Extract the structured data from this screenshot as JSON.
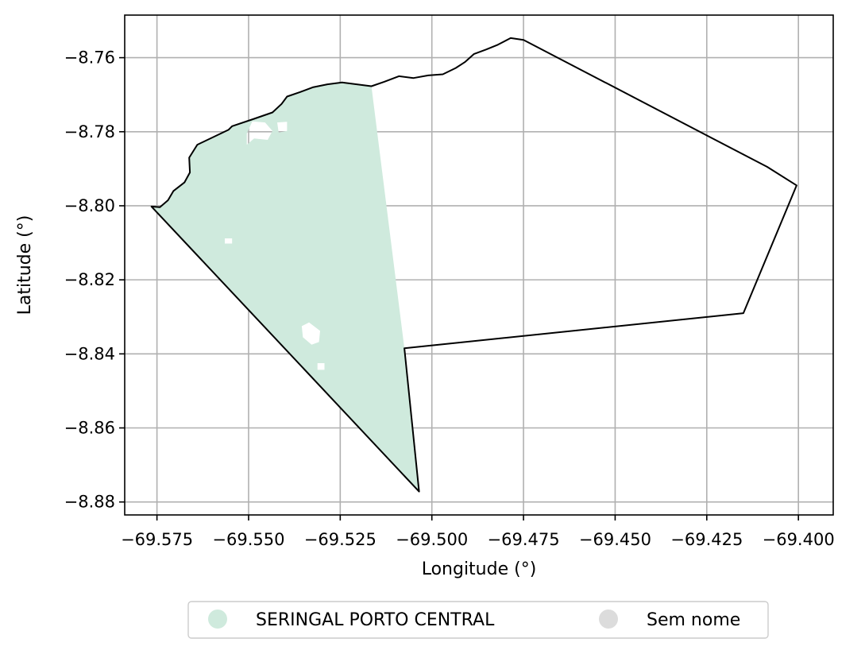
{
  "map": {
    "xlabel": "Longitude (°)",
    "ylabel": "Latitude (°)",
    "grid": true,
    "legend_placement": "bottom-center",
    "x_ticks": [
      "−69.575",
      "−69.550",
      "−69.525",
      "−69.500",
      "−69.475",
      "−69.450",
      "−69.425",
      "−69.400"
    ],
    "y_ticks": [
      "−8.76",
      "−8.78",
      "−8.80",
      "−8.82",
      "−8.84",
      "−8.86",
      "−8.88"
    ]
  },
  "chart_data": {
    "type": "map",
    "xlabel": "Longitude (°)",
    "ylabel": "Latitude (°)",
    "xlim": [
      -69.5838,
      -69.3905
    ],
    "ylim": [
      -8.8835,
      -8.7485
    ],
    "x_ticks": [
      -69.575,
      -69.55,
      -69.525,
      -69.5,
      -69.475,
      -69.45,
      -69.425,
      -69.4
    ],
    "y_ticks": [
      -8.76,
      -8.78,
      -8.8,
      -8.82,
      -8.84,
      -8.86,
      -8.88
    ],
    "grid": true,
    "legend": [
      {
        "label": "SERINGAL PORTO CENTRAL",
        "color": "#cfeadd"
      },
      {
        "label": "Sem nome",
        "color": "#dcdcdc"
      }
    ],
    "regions": [
      {
        "name": "SERINGAL PORTO CENTRAL",
        "color": "#cfeadd",
        "polygon": [
          [
            -69.5765,
            -8.8002
          ],
          [
            -69.5742,
            -8.8004
          ],
          [
            -69.572,
            -8.7985
          ],
          [
            -69.5705,
            -8.796
          ],
          [
            -69.5675,
            -8.7937
          ],
          [
            -69.566,
            -8.791
          ],
          [
            -69.5662,
            -8.787
          ],
          [
            -69.564,
            -8.7835
          ],
          [
            -69.5555,
            -8.7795
          ],
          [
            -69.5545,
            -8.7785
          ],
          [
            -69.5485,
            -8.7765
          ],
          [
            -69.5435,
            -8.7748
          ],
          [
            -69.541,
            -8.7725
          ],
          [
            -69.5395,
            -8.7705
          ],
          [
            -69.536,
            -8.7693
          ],
          [
            -69.5325,
            -8.768
          ],
          [
            -69.5285,
            -8.7672
          ],
          [
            -69.5245,
            -8.7667
          ],
          [
            -69.5205,
            -8.7672
          ],
          [
            -69.5165,
            -8.7677
          ],
          [
            -69.5075,
            -8.8385
          ],
          [
            -69.5035,
            -8.8772
          ]
        ],
        "holes": [
          [
            [
              -69.5505,
              -8.7805
            ],
            [
              -69.549,
              -8.7772
            ],
            [
              -69.5455,
              -8.7775
            ],
            [
              -69.5435,
              -8.7798
            ],
            [
              -69.5448,
              -8.7822
            ],
            [
              -69.5485,
              -8.7818
            ],
            [
              -69.5505,
              -8.7835
            ]
          ],
          [
            [
              -69.5422,
              -8.7775
            ],
            [
              -69.5395,
              -8.7773
            ],
            [
              -69.5395,
              -8.7798
            ],
            [
              -69.5418,
              -8.7802
            ]
          ],
          [
            [
              -69.5565,
              -8.8088
            ],
            [
              -69.5545,
              -8.8088
            ],
            [
              -69.5545,
              -8.8102
            ],
            [
              -69.5565,
              -8.8102
            ]
          ],
          [
            [
              -69.5355,
              -8.8325
            ],
            [
              -69.5335,
              -8.8315
            ],
            [
              -69.5305,
              -8.8338
            ],
            [
              -69.5308,
              -8.8368
            ],
            [
              -69.5328,
              -8.8375
            ],
            [
              -69.5352,
              -8.8355
            ]
          ],
          [
            [
              -69.5312,
              -8.8425
            ],
            [
              -69.5293,
              -8.8425
            ],
            [
              -69.5293,
              -8.8443
            ],
            [
              -69.5312,
              -8.8443
            ]
          ]
        ]
      },
      {
        "name": "Sem nome",
        "color": "none",
        "polygon": [
          [
            -69.5765,
            -8.8002
          ],
          [
            -69.5742,
            -8.8004
          ],
          [
            -69.572,
            -8.7985
          ],
          [
            -69.5705,
            -8.796
          ],
          [
            -69.5675,
            -8.7937
          ],
          [
            -69.566,
            -8.791
          ],
          [
            -69.5662,
            -8.787
          ],
          [
            -69.564,
            -8.7835
          ],
          [
            -69.5555,
            -8.7795
          ],
          [
            -69.5545,
            -8.7785
          ],
          [
            -69.5485,
            -8.7765
          ],
          [
            -69.5435,
            -8.7748
          ],
          [
            -69.541,
            -8.7725
          ],
          [
            -69.5395,
            -8.7705
          ],
          [
            -69.536,
            -8.7693
          ],
          [
            -69.5325,
            -8.768
          ],
          [
            -69.5285,
            -8.7672
          ],
          [
            -69.5245,
            -8.7667
          ],
          [
            -69.5205,
            -8.7672
          ],
          [
            -69.5165,
            -8.7677
          ],
          [
            -69.513,
            -8.7665
          ],
          [
            -69.509,
            -8.765
          ],
          [
            -69.505,
            -8.7655
          ],
          [
            -69.501,
            -8.7648
          ],
          [
            -69.497,
            -8.7645
          ],
          [
            -69.4935,
            -8.7628
          ],
          [
            -69.491,
            -8.7612
          ],
          [
            -69.4885,
            -8.759
          ],
          [
            -69.4852,
            -8.7578
          ],
          [
            -69.482,
            -8.7565
          ],
          [
            -69.4785,
            -8.7547
          ],
          [
            -69.475,
            -8.7552
          ],
          [
            -69.4085,
            -8.7895
          ],
          [
            -69.4005,
            -8.7945
          ],
          [
            -69.415,
            -8.829
          ],
          [
            -69.5075,
            -8.8385
          ],
          [
            -69.5035,
            -8.8772
          ]
        ]
      }
    ]
  }
}
